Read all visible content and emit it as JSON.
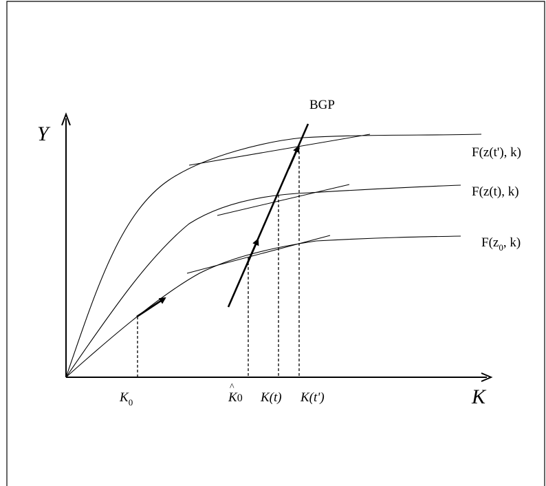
{
  "axes": {
    "y_label": "Y",
    "x_label": "K"
  },
  "bgp_label": "BGP",
  "curves": [
    {
      "id": "top",
      "label_text": "F(z(t'), k)"
    },
    {
      "id": "mid",
      "label_text": "F(z(t), k)"
    },
    {
      "id": "low",
      "label_main": "F(z",
      "label_sub": "0",
      "label_end": ", k)"
    }
  ],
  "tick_labels": {
    "k0_main": "K",
    "k0_sub": "0",
    "khat_main": "K",
    "khat_sub": "0",
    "khat_accent": "^",
    "kt": "K(t)",
    "ktp": "K(t')"
  }
}
